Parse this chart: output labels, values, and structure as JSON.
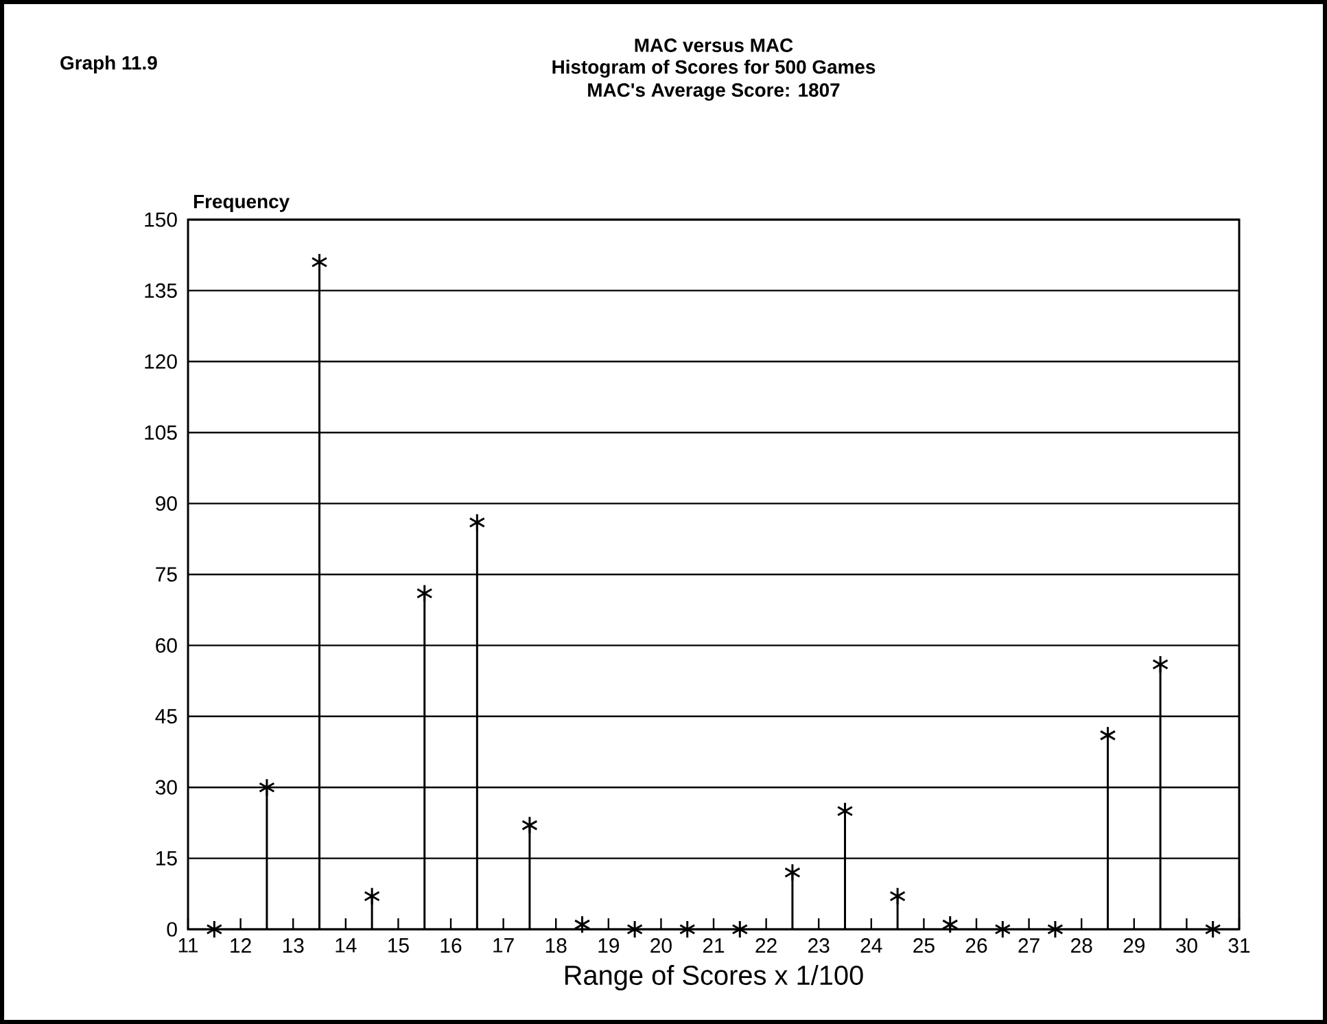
{
  "chart_data": {
    "type": "lollipop",
    "title": "MAC versus MAC",
    "subtitle": "Histogram of Scores for 500 Games",
    "annotations": [
      "MAC's Average Score: 1807",
      "Graph 11.9"
    ],
    "xlabel": "Range of Scores x 1/100",
    "ylabel": "Frequency",
    "x": [
      11.5,
      12.5,
      13.5,
      14.5,
      15.5,
      16.5,
      17.5,
      18.5,
      19.5,
      20.5,
      21.5,
      22.5,
      23.5,
      24.5,
      25.5,
      26.5,
      27.5,
      28.5,
      29.5,
      30.5
    ],
    "values": [
      0,
      30,
      141,
      7,
      71,
      86,
      22,
      1,
      0,
      0,
      0,
      12,
      25,
      7,
      1,
      0,
      0,
      41,
      56,
      0
    ],
    "color": "#000000",
    "marker": "cross",
    "xlim": [
      11,
      31
    ],
    "ylim": [
      0,
      150
    ],
    "xticks": [
      11,
      12,
      13,
      14,
      15,
      16,
      17,
      18,
      19,
      20,
      21,
      22,
      23,
      24,
      25,
      26,
      27,
      28,
      29,
      30,
      31
    ],
    "yticks": [
      0,
      15,
      30,
      45,
      60,
      75,
      90,
      105,
      120,
      135,
      150
    ],
    "grid": "y"
  }
}
